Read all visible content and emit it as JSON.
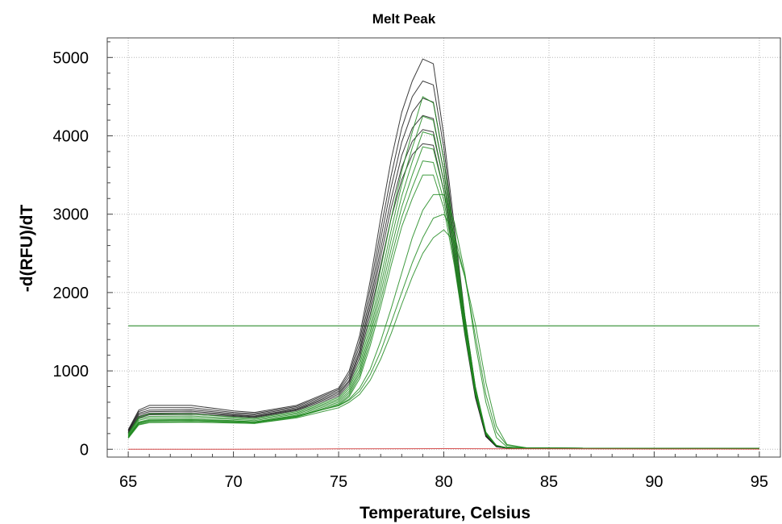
{
  "chart_data": {
    "type": "line",
    "title": "Melt Peak",
    "xlabel": "Temperature, Celsius",
    "ylabel": "-d(RFU)/dT",
    "xlim": [
      64,
      96
    ],
    "ylim": [
      -100,
      5250
    ],
    "xticks": [
      65,
      70,
      75,
      80,
      85,
      90,
      95
    ],
    "yticks": [
      0,
      1000,
      2000,
      3000,
      4000,
      5000
    ],
    "xtick_labels": [
      "65",
      "70",
      "75",
      "80",
      "85",
      "90",
      "95"
    ],
    "ytick_labels": [
      "0",
      "1000",
      "2000",
      "3000",
      "4000",
      "5000"
    ],
    "grid": true,
    "legend": "none",
    "threshold": {
      "value": 1575,
      "color": "#2e8b2e"
    },
    "colors": {
      "black_series": "#1a1a1a",
      "green_series": "#1f8a1f",
      "negative_series": "#d03030"
    },
    "series": [
      {
        "color": "#1a1a1a",
        "x": [
          65,
          65.5,
          66,
          68,
          70,
          71,
          73,
          75,
          75.5,
          76,
          76.5,
          77,
          77.5,
          78,
          78.5,
          79,
          79.5,
          80,
          80.5,
          81,
          81.5,
          82,
          82.5,
          83,
          84,
          90,
          95
        ],
        "y": [
          250,
          500,
          560,
          560,
          490,
          470,
          560,
          780,
          1000,
          1450,
          2150,
          2950,
          3700,
          4300,
          4700,
          4980,
          4920,
          4000,
          2850,
          1700,
          800,
          200,
          40,
          15,
          15,
          10,
          10
        ]
      },
      {
        "color": "#1a1a1a",
        "x": [
          65,
          65.5,
          66,
          68,
          70,
          71,
          73,
          75,
          75.5,
          76,
          76.5,
          77,
          77.5,
          78,
          78.5,
          79,
          79.5,
          80,
          80.5,
          81,
          81.5,
          82,
          82.5,
          83,
          84,
          90,
          95
        ],
        "y": [
          240,
          480,
          530,
          530,
          470,
          455,
          545,
          760,
          960,
          1380,
          2050,
          2800,
          3500,
          4100,
          4500,
          4700,
          4650,
          3850,
          2750,
          1650,
          760,
          190,
          38,
          15,
          15,
          10,
          10
        ]
      },
      {
        "color": "#1a1a1a",
        "x": [
          65,
          65.5,
          66,
          68,
          70,
          71,
          73,
          75,
          75.5,
          76,
          76.5,
          77,
          77.5,
          78,
          78.5,
          79,
          79.5,
          80,
          80.5,
          81,
          81.5,
          82,
          82.5,
          83,
          84,
          90,
          95
        ],
        "y": [
          230,
          460,
          500,
          505,
          455,
          440,
          530,
          740,
          920,
          1320,
          1950,
          2680,
          3350,
          3920,
          4300,
          4480,
          4430,
          3700,
          2650,
          1600,
          730,
          180,
          36,
          15,
          15,
          10,
          10
        ]
      },
      {
        "color": "#1a1a1a",
        "x": [
          65,
          65.5,
          66,
          68,
          70,
          71,
          73,
          75,
          75.5,
          76,
          76.5,
          77,
          77.5,
          78,
          78.5,
          79,
          79.5,
          80,
          80.5,
          81,
          81.5,
          82,
          82.5,
          83,
          84,
          90,
          95
        ],
        "y": [
          220,
          440,
          480,
          485,
          440,
          425,
          515,
          720,
          880,
          1260,
          1870,
          2560,
          3200,
          3750,
          4100,
          4260,
          4220,
          3550,
          2560,
          1550,
          700,
          170,
          34,
          14,
          14,
          10,
          10
        ]
      },
      {
        "color": "#1a1a1a",
        "x": [
          65,
          65.5,
          66,
          68,
          70,
          71,
          73,
          75,
          75.5,
          76,
          76.5,
          77,
          77.5,
          78,
          78.5,
          79,
          79.5,
          80,
          80.5,
          81,
          81.5,
          82,
          82.5,
          83,
          84,
          90,
          95
        ],
        "y": [
          210,
          420,
          460,
          465,
          430,
          415,
          505,
          700,
          860,
          1220,
          1800,
          2460,
          3080,
          3600,
          3930,
          4080,
          4050,
          3420,
          2470,
          1500,
          680,
          165,
          33,
          14,
          14,
          10,
          10
        ]
      },
      {
        "color": "#1a1a1a",
        "x": [
          65,
          65.5,
          66,
          68,
          70,
          71,
          73,
          75,
          75.5,
          76,
          76.5,
          77,
          77.5,
          78,
          78.5,
          79,
          79.5,
          80,
          80.5,
          81,
          81.5,
          82,
          82.5,
          83,
          84,
          90,
          95
        ],
        "y": [
          200,
          400,
          440,
          445,
          420,
          405,
          495,
          680,
          830,
          1170,
          1720,
          2350,
          2950,
          3440,
          3760,
          3900,
          3880,
          3300,
          2400,
          1460,
          660,
          160,
          32,
          14,
          14,
          10,
          10
        ]
      },
      {
        "color": "#1f8a1f",
        "x": [
          65,
          65.5,
          66,
          68,
          70,
          71,
          73,
          75,
          75.5,
          76,
          76.5,
          77,
          77.5,
          78,
          78.5,
          79,
          79.5,
          80,
          80.5,
          81,
          81.5,
          82,
          82.5,
          83,
          84,
          90,
          95
        ],
        "y": [
          200,
          410,
          450,
          450,
          410,
          395,
          480,
          660,
          800,
          1120,
          1650,
          2300,
          2950,
          3550,
          4050,
          4500,
          4420,
          3700,
          2750,
          1700,
          800,
          220,
          50,
          18,
          15,
          10,
          10
        ]
      },
      {
        "color": "#1f8a1f",
        "x": [
          65,
          65.5,
          66,
          68,
          70,
          71,
          73,
          75,
          75.5,
          76,
          76.5,
          77,
          77.5,
          78,
          78.5,
          79,
          79.5,
          80,
          80.5,
          81,
          81.5,
          82,
          82.5,
          83,
          84,
          90,
          95
        ],
        "y": [
          190,
          390,
          420,
          425,
          395,
          380,
          465,
          640,
          770,
          1070,
          1570,
          2180,
          2800,
          3380,
          3850,
          4250,
          4200,
          3550,
          2650,
          1650,
          780,
          210,
          48,
          18,
          15,
          10,
          10
        ]
      },
      {
        "color": "#1f8a1f",
        "x": [
          65,
          65.5,
          66,
          68,
          70,
          71,
          73,
          75,
          75.5,
          76,
          76.5,
          77,
          77.5,
          78,
          78.5,
          79,
          79.5,
          80,
          80.5,
          81,
          81.5,
          82,
          82.5,
          83,
          84,
          90,
          95
        ],
        "y": [
          180,
          370,
          400,
          405,
          380,
          365,
          450,
          620,
          740,
          1020,
          1500,
          2080,
          2680,
          3230,
          3670,
          4050,
          4010,
          3420,
          2570,
          1600,
          760,
          205,
          47,
          18,
          15,
          10,
          10
        ]
      },
      {
        "color": "#1f8a1f",
        "x": [
          65,
          65.5,
          66,
          68,
          70,
          71,
          73,
          75,
          75.5,
          76,
          76.5,
          77,
          77.5,
          78,
          78.5,
          79,
          79.5,
          80,
          80.5,
          81,
          81.5,
          82,
          82.5,
          83,
          84,
          90,
          95
        ],
        "y": [
          170,
          350,
          380,
          385,
          365,
          350,
          435,
          600,
          715,
          980,
          1440,
          1990,
          2560,
          3090,
          3500,
          3860,
          3830,
          3300,
          2500,
          1560,
          740,
          200,
          46,
          18,
          15,
          10,
          10
        ]
      },
      {
        "color": "#1f8a1f",
        "x": [
          65,
          65.5,
          66,
          68,
          70,
          71,
          73,
          75,
          75.5,
          76,
          76.5,
          77,
          77.5,
          78,
          78.5,
          79,
          79.5,
          80,
          80.5,
          81,
          81.5,
          82,
          82.5,
          83,
          84,
          90,
          95
        ],
        "y": [
          160,
          335,
          360,
          365,
          350,
          340,
          420,
          580,
          690,
          940,
          1380,
          1900,
          2450,
          2960,
          3340,
          3680,
          3660,
          3180,
          2420,
          1520,
          720,
          195,
          45,
          18,
          15,
          10,
          10
        ]
      },
      {
        "color": "#1f8a1f",
        "x": [
          65,
          65.5,
          66,
          68,
          70,
          71,
          73,
          75,
          75.5,
          76,
          76.5,
          77,
          77.5,
          78,
          78.5,
          79,
          79.5,
          80,
          80.5,
          81,
          81.5,
          82,
          82.5,
          83,
          84,
          90,
          95
        ],
        "y": [
          150,
          320,
          345,
          350,
          340,
          330,
          410,
          565,
          670,
          900,
          1320,
          1820,
          2350,
          2840,
          3200,
          3500,
          3500,
          3080,
          2350,
          1480,
          700,
          190,
          44,
          18,
          15,
          10,
          10
        ]
      },
      {
        "color": "#1f8a1f",
        "x": [
          65,
          65.5,
          66,
          68,
          70,
          71,
          73,
          75,
          75.5,
          76,
          76.5,
          77,
          77.5,
          78,
          78.5,
          79,
          79.5,
          80,
          80.5,
          81,
          81.5,
          82,
          82.5,
          83,
          84,
          90,
          95
        ],
        "y": [
          150,
          330,
          360,
          365,
          350,
          345,
          420,
          560,
          640,
          780,
          1020,
          1380,
          1800,
          2250,
          2700,
          3050,
          3250,
          3250,
          2900,
          2250,
          1350,
          600,
          150,
          30,
          15,
          10,
          10
        ]
      },
      {
        "color": "#1f8a1f",
        "x": [
          65,
          65.5,
          66,
          68,
          70,
          71,
          73,
          75,
          75.5,
          76,
          76.5,
          77,
          77.5,
          78,
          78.5,
          79,
          79.5,
          80,
          80.5,
          81,
          81.5,
          82,
          82.5,
          83,
          84,
          90,
          95
        ],
        "y": [
          160,
          340,
          370,
          375,
          360,
          350,
          425,
          555,
          625,
          740,
          950,
          1250,
          1620,
          2000,
          2380,
          2700,
          2950,
          3000,
          2750,
          2200,
          1450,
          700,
          220,
          50,
          15,
          10,
          10
        ]
      },
      {
        "color": "#1f8a1f",
        "x": [
          65,
          65.5,
          66,
          68,
          70,
          71,
          73,
          75,
          75.5,
          76,
          76.5,
          77,
          77.5,
          78,
          78.5,
          79,
          79.5,
          80,
          80.5,
          81,
          81.5,
          82,
          82.5,
          83,
          84,
          90,
          95
        ],
        "y": [
          140,
          310,
          340,
          345,
          335,
          330,
          400,
          530,
          600,
          700,
          880,
          1150,
          1480,
          1850,
          2200,
          2500,
          2700,
          2800,
          2650,
          2200,
          1600,
          850,
          300,
          60,
          15,
          10,
          10
        ]
      },
      {
        "color": "#d03030",
        "x": [
          65,
          70,
          75,
          80,
          85,
          90,
          95
        ],
        "y": [
          0,
          0,
          5,
          8,
          5,
          3,
          2
        ]
      }
    ]
  }
}
